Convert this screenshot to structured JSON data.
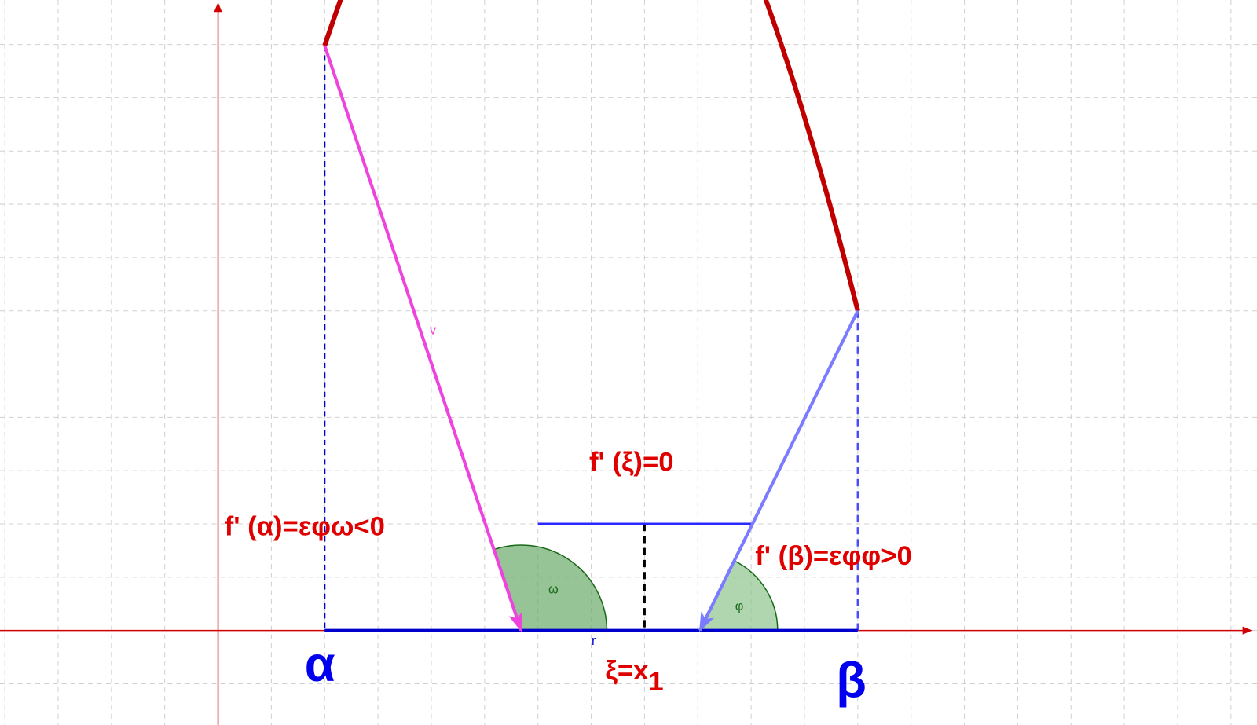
{
  "labels": {
    "alpha": "α",
    "beta": "β",
    "xi": {
      "main": "ξ=x",
      "sub": "1"
    },
    "f_xi": "f' (ξ)=0",
    "f_alpha": "f' (α)=εφω<0",
    "f_beta": "f' (β)=εφφ>0",
    "omega": "ω",
    "phi": "φ",
    "v": "v",
    "r": "r"
  }
}
